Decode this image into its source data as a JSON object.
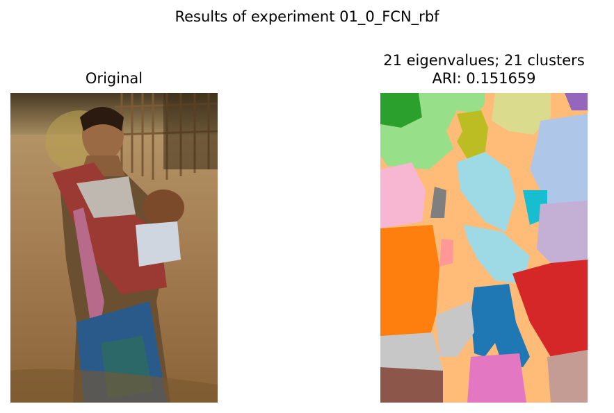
{
  "figure": {
    "suptitle": "Results of experiment 01_0_FCN_rbf"
  },
  "left_panel": {
    "title": "Original"
  },
  "right_panel": {
    "title_line1": "21 eigenvalues; 21 clusters",
    "title_line2": "ARI: 0.151659"
  },
  "palette": {
    "background_cluster": "#ffbb78",
    "green_dark": "#2ca02c",
    "green_light": "#98df8a",
    "olive": "#bcbd22",
    "khaki": "#dbdb8d",
    "purple": "#9467bd",
    "lavender": "#c5b0d5",
    "light_blue": "#aec7e8",
    "cyan_light": "#9edae5",
    "cyan": "#17becf",
    "pink_light": "#f7b6d2",
    "pink_mid": "#ff9896",
    "gray": "#7f7f7f",
    "gray_light": "#c7c7c7",
    "orange": "#ff7f0e",
    "blue": "#1f77b4",
    "red": "#d62728",
    "brown": "#8c564b",
    "magenta": "#e377c2",
    "rose_brown": "#c49c94"
  }
}
